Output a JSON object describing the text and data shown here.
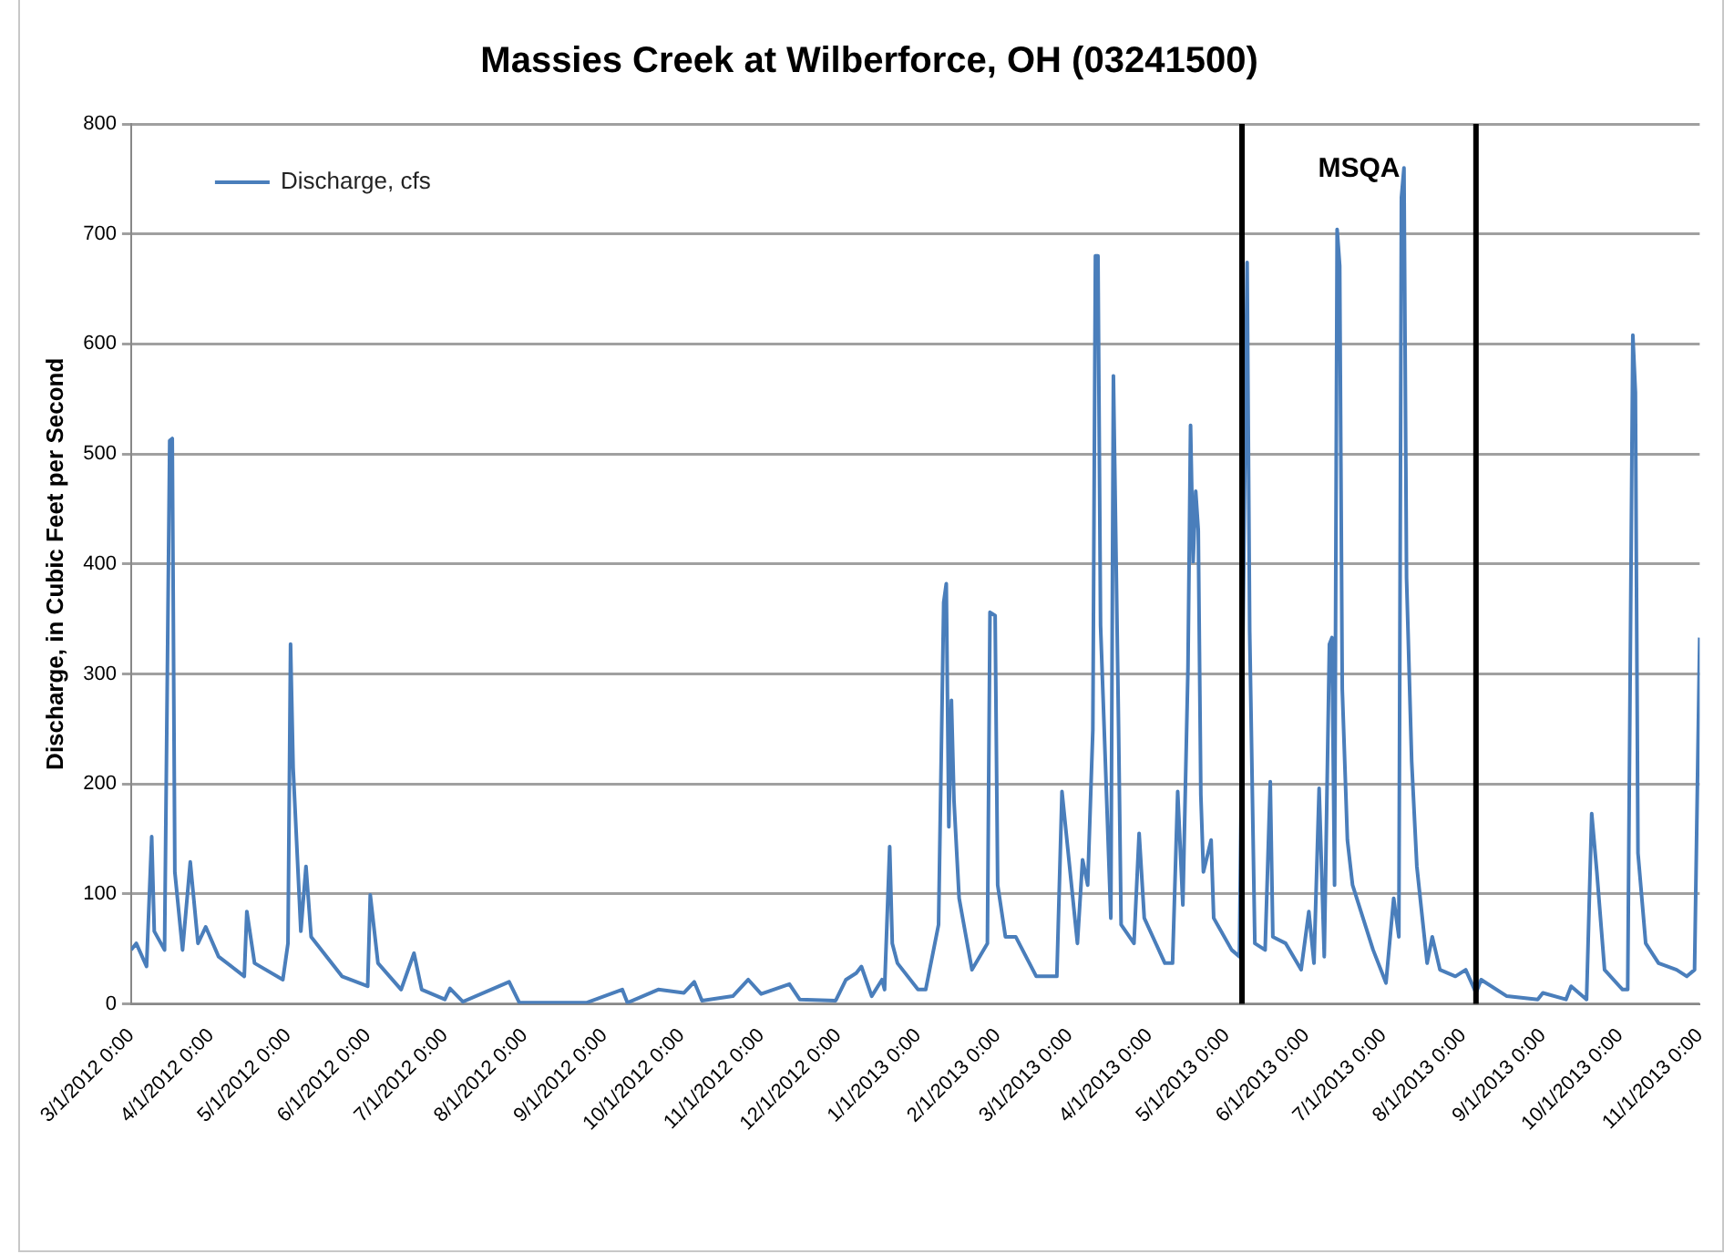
{
  "chart_data": {
    "type": "line",
    "title": "Massies Creek at Wilberforce, OH (03241500)",
    "ylabel": "Discharge, in Cubic Feet per Second",
    "series": [
      {
        "name": "Discharge, cfs",
        "color": "#4a7ebb",
        "x": [
          "2012-03-01",
          "2012-03-03",
          "2012-03-07",
          "2012-03-09",
          "2012-03-10",
          "2012-03-14",
          "2012-03-16",
          "2012-03-17",
          "2012-03-18",
          "2012-03-21",
          "2012-03-24",
          "2012-03-27",
          "2012-03-30",
          "2012-04-04",
          "2012-04-14",
          "2012-04-15",
          "2012-04-18",
          "2012-04-29",
          "2012-05-01",
          "2012-05-02",
          "2012-05-03",
          "2012-05-06",
          "2012-05-08",
          "2012-05-10",
          "2012-05-22",
          "2012-06-01",
          "2012-06-02",
          "2012-06-05",
          "2012-06-14",
          "2012-06-19",
          "2012-06-22",
          "2012-07-01",
          "2012-07-03",
          "2012-07-08",
          "2012-07-26",
          "2012-07-30",
          "2012-08-25",
          "2012-09-08",
          "2012-09-10",
          "2012-09-22",
          "2012-10-02",
          "2012-10-06",
          "2012-10-09",
          "2012-10-21",
          "2012-10-27",
          "2012-11-01",
          "2012-11-12",
          "2012-11-16",
          "2012-11-30",
          "2012-12-04",
          "2012-12-08",
          "2012-12-10",
          "2012-12-14",
          "2012-12-18",
          "2012-12-19",
          "2012-12-21",
          "2012-12-22",
          "2012-12-24",
          "2013-01-01",
          "2013-01-04",
          "2013-01-09",
          "2013-01-11",
          "2013-01-12",
          "2013-01-13",
          "2013-01-14",
          "2013-01-15",
          "2013-01-17",
          "2013-01-22",
          "2013-01-28",
          "2013-01-29",
          "2013-01-31",
          "2013-02-01",
          "2013-02-04",
          "2013-02-08",
          "2013-02-16",
          "2013-02-24",
          "2013-02-26",
          "2013-03-04",
          "2013-03-06",
          "2013-03-08",
          "2013-03-10",
          "2013-03-11",
          "2013-03-12",
          "2013-03-13",
          "2013-03-17",
          "2013-03-18",
          "2013-03-20",
          "2013-03-21",
          "2013-03-26",
          "2013-03-28",
          "2013-03-30",
          "2013-04-07",
          "2013-04-10",
          "2013-04-12",
          "2013-04-14",
          "2013-04-16",
          "2013-04-17",
          "2013-04-18",
          "2013-04-19",
          "2013-04-20",
          "2013-04-21",
          "2013-04-22",
          "2013-04-25",
          "2013-04-26",
          "2013-05-03",
          "2013-05-06",
          "2013-05-09",
          "2013-05-10",
          "2013-05-12",
          "2013-05-16",
          "2013-05-18",
          "2013-05-19",
          "2013-05-24",
          "2013-05-30",
          "2013-06-02",
          "2013-06-04",
          "2013-06-06",
          "2013-06-08",
          "2013-06-10",
          "2013-06-11",
          "2013-06-12",
          "2013-06-13",
          "2013-06-14",
          "2013-06-15",
          "2013-06-17",
          "2013-06-19",
          "2013-06-27",
          "2013-07-02",
          "2013-07-05",
          "2013-07-07",
          "2013-07-08",
          "2013-07-09",
          "2013-07-10",
          "2013-07-12",
          "2013-07-14",
          "2013-07-18",
          "2013-07-20",
          "2013-07-23",
          "2013-07-29",
          "2013-08-02",
          "2013-08-06",
          "2013-08-08",
          "2013-08-18",
          "2013-08-30",
          "2013-09-01",
          "2013-09-10",
          "2013-09-12",
          "2013-09-18",
          "2013-09-20",
          "2013-09-22",
          "2013-09-25",
          "2013-10-02",
          "2013-10-04",
          "2013-10-06",
          "2013-10-07",
          "2013-10-08",
          "2013-10-11",
          "2013-10-16",
          "2013-10-23",
          "2013-10-27",
          "2013-10-30",
          "2013-11-01"
        ],
        "values": [
          49,
          55,
          34,
          152,
          66,
          49,
          512,
          514,
          120,
          49,
          129,
          55,
          70,
          43,
          25,
          84,
          37,
          22,
          55,
          327,
          215,
          66,
          125,
          61,
          25,
          16,
          99,
          37,
          13,
          46,
          13,
          4,
          14,
          2,
          20,
          1,
          1,
          13,
          1,
          13,
          10,
          20,
          3,
          7,
          22,
          9,
          18,
          4,
          3,
          22,
          28,
          34,
          7,
          22,
          13,
          143,
          55,
          37,
          13,
          13,
          72,
          365,
          382,
          161,
          276,
          185,
          96,
          31,
          55,
          356,
          353,
          108,
          61,
          61,
          25,
          25,
          193,
          55,
          131,
          108,
          249,
          680,
          680,
          344,
          78,
          571,
          252,
          72,
          55,
          155,
          78,
          37,
          37,
          193,
          90,
          306,
          526,
          402,
          466,
          431,
          190,
          120,
          149,
          78,
          49,
          43,
          674,
          338,
          55,
          49,
          202,
          61,
          55,
          31,
          84,
          37,
          196,
          43,
          327,
          333,
          108,
          704,
          671,
          286,
          149,
          108,
          49,
          19,
          96,
          61,
          733,
          760,
          387,
          220,
          125,
          37,
          61,
          31,
          25,
          31,
          10,
          22,
          7,
          4,
          10,
          4,
          16,
          4,
          173,
          120,
          31,
          13,
          13,
          608,
          556,
          137,
          55,
          37,
          31,
          25,
          31,
          333
        ]
      }
    ],
    "xlim": [
      "2012-03-01",
      "2013-11-01"
    ],
    "xticks": [
      {
        "value": "2012-03-01",
        "label": "3/1/2012 0:00"
      },
      {
        "value": "2012-04-01",
        "label": "4/1/2012 0:00"
      },
      {
        "value": "2012-05-01",
        "label": "5/1/2012 0:00"
      },
      {
        "value": "2012-06-01",
        "label": "6/1/2012 0:00"
      },
      {
        "value": "2012-07-01",
        "label": "7/1/2012 0:00"
      },
      {
        "value": "2012-08-01",
        "label": "8/1/2012 0:00"
      },
      {
        "value": "2012-09-01",
        "label": "9/1/2012 0:00"
      },
      {
        "value": "2012-10-01",
        "label": "10/1/2012 0:00"
      },
      {
        "value": "2012-11-01",
        "label": "11/1/2012 0:00"
      },
      {
        "value": "2012-12-01",
        "label": "12/1/2012 0:00"
      },
      {
        "value": "2013-01-01",
        "label": "1/1/2013 0:00"
      },
      {
        "value": "2013-02-01",
        "label": "2/1/2013 0:00"
      },
      {
        "value": "2013-03-01",
        "label": "3/1/2013 0:00"
      },
      {
        "value": "2013-04-01",
        "label": "4/1/2013 0:00"
      },
      {
        "value": "2013-05-01",
        "label": "5/1/2013 0:00"
      },
      {
        "value": "2013-06-01",
        "label": "6/1/2013 0:00"
      },
      {
        "value": "2013-07-01",
        "label": "7/1/2013 0:00"
      },
      {
        "value": "2013-08-01",
        "label": "8/1/2013 0:00"
      },
      {
        "value": "2013-09-01",
        "label": "9/1/2013 0:00"
      },
      {
        "value": "2013-10-01",
        "label": "10/1/2013 0:00"
      },
      {
        "value": "2013-11-01",
        "label": "11/1/2013 0:00"
      }
    ],
    "ylim": [
      0,
      800
    ],
    "yticks": [
      0,
      100,
      200,
      300,
      400,
      500,
      600,
      700,
      800
    ],
    "grid": "y",
    "legend": "top left",
    "marker": "none",
    "line_style": "solid",
    "ref_lines": [
      {
        "axis": "x",
        "value": "2013-05-07",
        "color": "#000000"
      },
      {
        "axis": "x",
        "value": "2013-08-06",
        "color": "#000000"
      }
    ],
    "annotations": [
      "MSQA"
    ]
  }
}
